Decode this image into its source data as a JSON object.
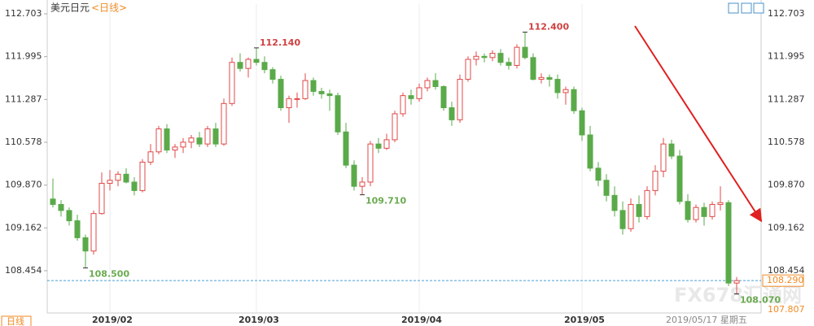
{
  "chart_data": {
    "type": "candlestick",
    "title": "美元日元",
    "subtitle": "<日线>",
    "period_tab": "日线",
    "date_label": "2019/05/17 星期五",
    "watermark": "FX678汇通网",
    "up_color": "#e04848",
    "down_color": "#5aaa4a",
    "open": [
      109.64,
      109.55,
      109.45,
      109.28,
      109.0,
      108.78,
      109.4,
      109.9,
      109.95,
      110.05,
      109.92,
      109.78,
      110.25,
      110.42,
      110.8,
      110.45,
      110.5,
      110.58,
      110.65,
      110.55,
      110.8,
      110.55,
      111.22,
      111.9,
      111.8,
      111.95,
      111.9,
      111.78,
      111.62,
      111.15,
      111.3,
      111.3,
      111.6,
      111.42,
      111.38,
      111.35,
      110.75,
      110.2,
      109.85,
      109.92,
      110.55,
      110.48,
      110.62,
      111.05,
      111.35,
      111.3,
      111.48,
      111.6,
      111.5,
      111.15,
      110.95,
      111.62,
      111.95,
      112.0,
      111.98,
      112.05,
      111.9,
      111.85,
      112.15,
      111.98,
      111.62,
      111.65,
      111.62,
      111.4,
      111.45,
      111.1,
      110.7,
      110.15,
      109.95,
      109.7,
      109.45,
      109.15,
      109.55,
      109.35,
      109.78,
      110.1,
      110.55,
      110.35,
      109.6,
      109.3,
      109.5,
      109.35,
      109.55,
      109.58,
      108.25
    ],
    "high": [
      109.98,
      109.62,
      109.5,
      109.38,
      109.05,
      109.45,
      110.08,
      110.12,
      110.1,
      110.15,
      110.0,
      110.3,
      110.55,
      110.85,
      110.88,
      110.55,
      110.65,
      110.7,
      110.75,
      110.85,
      110.9,
      111.3,
      111.98,
      112.05,
      111.98,
      112.14,
      112.0,
      111.82,
      111.68,
      111.35,
      111.4,
      111.72,
      111.65,
      111.48,
      111.45,
      111.4,
      110.9,
      110.28,
      110.0,
      110.6,
      110.65,
      110.72,
      111.1,
      111.4,
      111.45,
      111.55,
      111.65,
      111.72,
      111.52,
      111.25,
      111.7,
      112.0,
      112.08,
      112.05,
      112.1,
      112.12,
      111.98,
      112.2,
      112.4,
      112.05,
      111.72,
      111.7,
      111.7,
      111.5,
      111.5,
      111.15,
      110.85,
      110.25,
      110.05,
      109.85,
      109.6,
      109.65,
      109.7,
      109.85,
      110.2,
      110.65,
      110.62,
      110.45,
      109.72,
      109.55,
      109.58,
      109.6,
      109.85,
      109.62,
      108.35
    ],
    "low": [
      109.5,
      109.35,
      109.2,
      108.95,
      108.5,
      108.72,
      109.38,
      109.78,
      109.85,
      109.9,
      109.7,
      109.75,
      110.2,
      110.38,
      110.4,
      110.32,
      110.4,
      110.48,
      110.5,
      110.5,
      110.5,
      110.52,
      111.18,
      111.75,
      111.65,
      111.85,
      111.72,
      111.55,
      111.1,
      110.9,
      111.15,
      111.28,
      111.35,
      111.3,
      111.1,
      110.7,
      110.15,
      109.78,
      109.71,
      109.85,
      110.4,
      110.45,
      110.58,
      111.0,
      111.2,
      111.25,
      111.42,
      111.45,
      111.1,
      110.85,
      110.9,
      111.58,
      111.85,
      111.9,
      111.92,
      111.85,
      111.78,
      111.8,
      111.95,
      111.6,
      111.55,
      111.5,
      111.3,
      111.2,
      111.05,
      110.6,
      110.1,
      109.85,
      109.6,
      109.35,
      109.05,
      109.1,
      109.25,
      109.3,
      109.7,
      110.0,
      110.3,
      109.55,
      109.25,
      109.25,
      109.2,
      109.3,
      109.45,
      108.2,
      108.07
    ],
    "close": [
      109.55,
      109.45,
      109.28,
      109.0,
      108.78,
      109.4,
      109.9,
      109.95,
      110.05,
      109.92,
      109.78,
      110.25,
      110.42,
      110.8,
      110.45,
      110.5,
      110.58,
      110.65,
      110.55,
      110.8,
      110.55,
      111.22,
      111.9,
      111.8,
      111.95,
      111.9,
      111.78,
      111.62,
      111.15,
      111.3,
      111.3,
      111.6,
      111.42,
      111.38,
      111.35,
      110.75,
      110.2,
      109.85,
      109.92,
      110.55,
      110.48,
      110.62,
      111.05,
      111.35,
      111.3,
      111.48,
      111.6,
      111.5,
      111.15,
      110.95,
      111.62,
      111.95,
      112.0,
      111.98,
      112.05,
      111.9,
      111.85,
      112.15,
      111.98,
      111.62,
      111.65,
      111.62,
      111.4,
      111.45,
      111.1,
      110.7,
      110.15,
      109.95,
      109.7,
      109.45,
      109.15,
      109.55,
      109.35,
      109.78,
      110.1,
      110.55,
      110.35,
      109.6,
      109.3,
      109.5,
      109.35,
      109.55,
      109.58,
      108.25,
      108.29
    ],
    "xticks": [
      {
        "value": 7,
        "label": "2019/02"
      },
      {
        "value": 25,
        "label": "2019/03"
      },
      {
        "value": 45,
        "label": "2019/04"
      },
      {
        "value": 65,
        "label": "2019/05"
      }
    ],
    "ylim": [
      107.76,
      112.87
    ],
    "yticks": [
      112.703,
      111.995,
      111.287,
      110.578,
      {
        "value": 109.87,
        "label": "109.870"
      },
      109.162,
      108.454
    ],
    "markers": [
      {
        "index": 4,
        "value": 108.5,
        "label": "108.500"
      },
      {
        "index": 25,
        "value": 112.14,
        "label": "112.140"
      },
      {
        "index": 38,
        "value": 109.71,
        "label": "109.710"
      },
      {
        "index": 58,
        "value": 112.4,
        "label": "112.400"
      },
      {
        "index": 84,
        "value": 108.07,
        "label": "108.070"
      }
    ],
    "last_price": {
      "value": 108.29,
      "label": "108.290"
    },
    "y_bottom_label": {
      "value": 107.807,
      "label": "107.807"
    }
  }
}
